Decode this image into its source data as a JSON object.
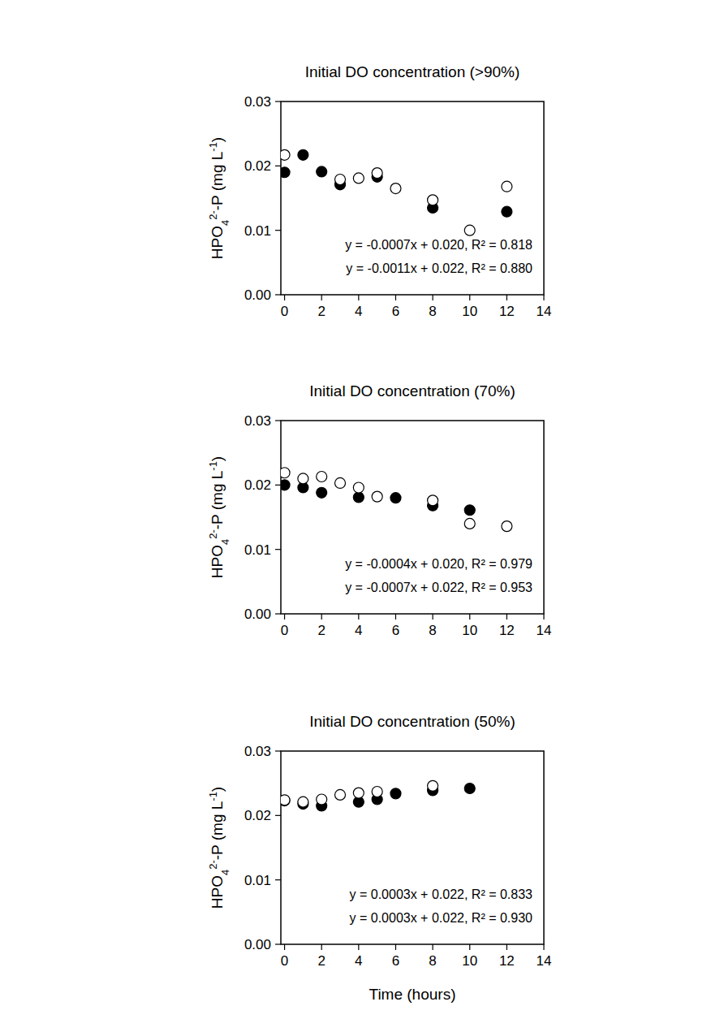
{
  "chart_data": [
    {
      "type": "scatter",
      "title": "Initial DO concentration (>90%)",
      "y_label": [
        "HPO",
        "4",
        "2-",
        "-P (mg L",
        "-1",
        ")"
      ],
      "x": [
        0,
        1,
        2,
        3,
        4,
        5,
        6,
        8,
        10,
        12
      ],
      "series": [
        {
          "color": "#000000",
          "marker": "circle",
          "values": [
            0.019,
            0.0217,
            0.0191,
            0.0171,
            null,
            0.0183,
            null,
            0.0135,
            null,
            0.0129
          ]
        },
        {
          "color": "#000000",
          "marker": "open-circle",
          "values": [
            0.0217,
            null,
            null,
            0.0179,
            0.0181,
            0.0189,
            0.0165,
            0.0147,
            0.01,
            0.0168
          ]
        }
      ],
      "xlim": [
        -0.2,
        14
      ],
      "xticks": [
        0,
        2,
        4,
        6,
        8,
        10,
        12,
        14
      ],
      "ylim": [
        0,
        0.03
      ],
      "yticks": [
        {
          "value": 0,
          "label": "0.00"
        },
        0.01,
        0.02,
        0.03
      ],
      "annotations": [
        "y = -0.0007x + 0.020, R² = 0.818",
        "y = -0.0011x + 0.022, R² = 0.880"
      ]
    },
    {
      "type": "scatter",
      "title": "Initial DO concentration (70%)",
      "y_label": [
        "HPO",
        "4",
        "2-",
        "-P (mg L",
        "-1",
        ")"
      ],
      "x": [
        0,
        1,
        2,
        3,
        4,
        5,
        6,
        8,
        10,
        12
      ],
      "series": [
        {
          "color": "#000000",
          "marker": "circle",
          "values": [
            0.02,
            0.0196,
            0.0188,
            null,
            0.0181,
            null,
            0.018,
            0.0168,
            0.0161,
            null
          ]
        },
        {
          "color": "#000000",
          "marker": "open-circle",
          "values": [
            0.0219,
            0.021,
            0.0213,
            0.0203,
            0.0196,
            0.0182,
            null,
            0.0176,
            0.014,
            0.0136
          ]
        }
      ],
      "xlim": [
        -0.2,
        14
      ],
      "xticks": [
        0,
        2,
        4,
        6,
        8,
        10,
        12,
        14
      ],
      "ylim": [
        0,
        0.03
      ],
      "yticks": [
        {
          "value": 0,
          "label": "0.00"
        },
        0.01,
        0.02,
        0.03
      ],
      "annotations": [
        "y = -0.0004x + 0.020, R² = 0.979",
        "y = -0.0007x + 0.022, R² = 0.953"
      ]
    },
    {
      "type": "scatter",
      "title": "Initial DO concentration (50%)",
      "x_label": "Time (hours)",
      "y_label": [
        "HPO",
        "4",
        "2-",
        "-P (mg L",
        "-1",
        ")"
      ],
      "x": [
        0,
        1,
        2,
        3,
        4,
        5,
        6,
        8,
        10
      ],
      "series": [
        {
          "color": "#000000",
          "marker": "circle",
          "values": [
            0.0223,
            0.0218,
            0.0215,
            null,
            0.0221,
            0.0225,
            0.0234,
            0.0239,
            0.0242
          ]
        },
        {
          "color": "#000000",
          "marker": "open-circle",
          "values": [
            0.0224,
            0.0221,
            0.0225,
            0.0232,
            0.0235,
            0.0237,
            null,
            0.0246,
            null
          ]
        }
      ],
      "xlim": [
        -0.2,
        14
      ],
      "xticks": [
        0,
        2,
        4,
        6,
        8,
        10,
        12,
        14
      ],
      "ylim": [
        0,
        0.03
      ],
      "yticks": [
        {
          "value": 0,
          "label": "0.00"
        },
        0.01,
        0.02,
        0.03
      ],
      "annotations": [
        "y = 0.0003x + 0.022, R² = 0.833",
        "y = 0.0003x + 0.022, R² = 0.930"
      ]
    }
  ]
}
